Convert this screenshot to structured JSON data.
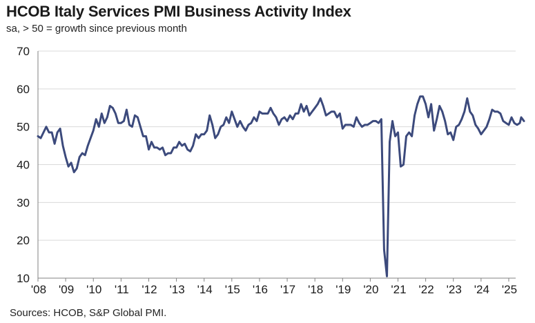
{
  "chart_data": {
    "type": "line",
    "title": "HCOB Italy Services PMI Business Activity Index",
    "subtitle": "sa, > 50 = growth since previous month",
    "source": "Sources: HCOB, S&P Global PMI.",
    "xlabel": "",
    "ylabel": "",
    "ylim": [
      10,
      70
    ],
    "yticks": [
      10,
      20,
      30,
      40,
      50,
      60,
      70
    ],
    "xlim": [
      2008.0,
      2025.25
    ],
    "xtick_labels": [
      "'08",
      "'09",
      "'10",
      "'11",
      "'12",
      "'13",
      "'14",
      "'15",
      "'16",
      "'17",
      "'18",
      "'19",
      "'20",
      "'21",
      "'22",
      "'23",
      "'24",
      "'25"
    ],
    "grid": "horizontal",
    "line_color": "#3c4a7c",
    "series": [
      {
        "name": "Services PMI Business Activity Index",
        "points": [
          [
            2008.0,
            47.5
          ],
          [
            2008.1,
            47
          ],
          [
            2008.2,
            48.5
          ],
          [
            2008.3,
            50
          ],
          [
            2008.4,
            48.5
          ],
          [
            2008.5,
            48.5
          ],
          [
            2008.6,
            45.5
          ],
          [
            2008.7,
            48.5
          ],
          [
            2008.8,
            49.5
          ],
          [
            2008.9,
            45
          ],
          [
            2009.0,
            42
          ],
          [
            2009.1,
            39.5
          ],
          [
            2009.2,
            40.5
          ],
          [
            2009.3,
            38
          ],
          [
            2009.4,
            39
          ],
          [
            2009.5,
            42
          ],
          [
            2009.6,
            43
          ],
          [
            2009.7,
            42.5
          ],
          [
            2009.8,
            45
          ],
          [
            2009.9,
            47
          ],
          [
            2010.0,
            49
          ],
          [
            2010.1,
            52
          ],
          [
            2010.2,
            50
          ],
          [
            2010.3,
            53.5
          ],
          [
            2010.4,
            51
          ],
          [
            2010.5,
            52.5
          ],
          [
            2010.6,
            55.5
          ],
          [
            2010.7,
            55
          ],
          [
            2010.8,
            53.5
          ],
          [
            2010.9,
            51
          ],
          [
            2011.0,
            51
          ],
          [
            2011.1,
            51.5
          ],
          [
            2011.2,
            54.5
          ],
          [
            2011.3,
            50.5
          ],
          [
            2011.4,
            50
          ],
          [
            2011.5,
            53
          ],
          [
            2011.6,
            52.5
          ],
          [
            2011.7,
            50
          ],
          [
            2011.8,
            47.5
          ],
          [
            2011.9,
            47.5
          ],
          [
            2012.0,
            44
          ],
          [
            2012.1,
            46
          ],
          [
            2012.2,
            44.5
          ],
          [
            2012.3,
            44.5
          ],
          [
            2012.4,
            44
          ],
          [
            2012.5,
            44.5
          ],
          [
            2012.6,
            42.5
          ],
          [
            2012.7,
            43
          ],
          [
            2012.8,
            43
          ],
          [
            2012.9,
            44.5
          ],
          [
            2013.0,
            44.5
          ],
          [
            2013.1,
            46
          ],
          [
            2013.2,
            45
          ],
          [
            2013.3,
            45.5
          ],
          [
            2013.4,
            44
          ],
          [
            2013.5,
            43.5
          ],
          [
            2013.6,
            45
          ],
          [
            2013.7,
            48
          ],
          [
            2013.8,
            47
          ],
          [
            2013.9,
            48
          ],
          [
            2014.0,
            48
          ],
          [
            2014.1,
            49
          ],
          [
            2014.2,
            53
          ],
          [
            2014.3,
            50.5
          ],
          [
            2014.4,
            47
          ],
          [
            2014.5,
            48
          ],
          [
            2014.6,
            50
          ],
          [
            2014.7,
            50.5
          ],
          [
            2014.8,
            52.5
          ],
          [
            2014.9,
            51
          ],
          [
            2015.0,
            54
          ],
          [
            2015.1,
            52
          ],
          [
            2015.2,
            50
          ],
          [
            2015.3,
            51.5
          ],
          [
            2015.4,
            50
          ],
          [
            2015.5,
            49
          ],
          [
            2015.6,
            50.5
          ],
          [
            2015.7,
            51
          ],
          [
            2015.8,
            52.5
          ],
          [
            2015.9,
            51.5
          ],
          [
            2016.0,
            54
          ],
          [
            2016.1,
            53.5
          ],
          [
            2016.2,
            53.5
          ],
          [
            2016.3,
            53.5
          ],
          [
            2016.4,
            55
          ],
          [
            2016.5,
            53.5
          ],
          [
            2016.6,
            52.5
          ],
          [
            2016.7,
            50.5
          ],
          [
            2016.8,
            52
          ],
          [
            2016.9,
            52.5
          ],
          [
            2017.0,
            51.5
          ],
          [
            2017.1,
            53
          ],
          [
            2017.2,
            52
          ],
          [
            2017.3,
            53.5
          ],
          [
            2017.4,
            53.5
          ],
          [
            2017.5,
            56
          ],
          [
            2017.6,
            54
          ],
          [
            2017.7,
            55.5
          ],
          [
            2017.8,
            53
          ],
          [
            2017.9,
            54
          ],
          [
            2018.0,
            55
          ],
          [
            2018.1,
            56
          ],
          [
            2018.2,
            57.5
          ],
          [
            2018.3,
            55.5
          ],
          [
            2018.4,
            53
          ],
          [
            2018.5,
            53.5
          ],
          [
            2018.6,
            54
          ],
          [
            2018.7,
            54
          ],
          [
            2018.8,
            52.5
          ],
          [
            2018.9,
            53.5
          ],
          [
            2019.0,
            49.5
          ],
          [
            2019.1,
            50.5
          ],
          [
            2019.2,
            50.5
          ],
          [
            2019.3,
            50.5
          ],
          [
            2019.4,
            50
          ],
          [
            2019.5,
            52.5
          ],
          [
            2019.6,
            51
          ],
          [
            2019.7,
            50
          ],
          [
            2019.8,
            50.5
          ],
          [
            2019.9,
            50.5
          ],
          [
            2020.0,
            51
          ],
          [
            2020.1,
            51.5
          ],
          [
            2020.2,
            51.5
          ],
          [
            2020.3,
            51
          ],
          [
            2020.4,
            52
          ],
          [
            2020.5,
            17.5
          ],
          [
            2020.6,
            10.5
          ],
          [
            2020.7,
            46
          ],
          [
            2020.8,
            51.5
          ],
          [
            2020.9,
            47.5
          ],
          [
            2021.0,
            48.5
          ],
          [
            2021.1,
            39.5
          ],
          [
            2021.2,
            40
          ],
          [
            2021.3,
            47.5
          ],
          [
            2021.4,
            48.5
          ],
          [
            2021.5,
            47.5
          ],
          [
            2021.6,
            53
          ],
          [
            2021.7,
            56
          ],
          [
            2021.8,
            58
          ],
          [
            2021.9,
            58
          ],
          [
            2022.0,
            56
          ],
          [
            2022.1,
            52.5
          ],
          [
            2022.2,
            56
          ],
          [
            2022.3,
            49
          ],
          [
            2022.4,
            52
          ],
          [
            2022.5,
            55.5
          ],
          [
            2022.6,
            54
          ],
          [
            2022.7,
            51.5
          ],
          [
            2022.8,
            48
          ],
          [
            2022.9,
            48.5
          ],
          [
            2023.0,
            46.5
          ],
          [
            2023.1,
            50
          ],
          [
            2023.2,
            50.5
          ],
          [
            2023.3,
            52
          ],
          [
            2023.4,
            54
          ],
          [
            2023.5,
            57.5
          ],
          [
            2023.6,
            54
          ],
          [
            2023.7,
            53
          ],
          [
            2023.8,
            50.5
          ],
          [
            2023.9,
            49.5
          ],
          [
            2024.0,
            48
          ],
          [
            2024.1,
            49
          ],
          [
            2024.2,
            50
          ],
          [
            2024.3,
            52
          ],
          [
            2024.4,
            54.5
          ],
          [
            2024.5,
            54
          ],
          [
            2024.6,
            54
          ],
          [
            2024.7,
            53.5
          ],
          [
            2024.8,
            51.5
          ],
          [
            2024.9,
            51
          ],
          [
            2025.0,
            50.5
          ],
          [
            2025.1,
            52.5
          ],
          [
            2025.2,
            51
          ],
          [
            2025.3,
            50.5
          ],
          [
            2025.4,
            51
          ],
          [
            2025.45,
            52.5
          ],
          [
            2025.5,
            52
          ],
          [
            2025.55,
            51.5
          ]
        ]
      }
    ]
  }
}
